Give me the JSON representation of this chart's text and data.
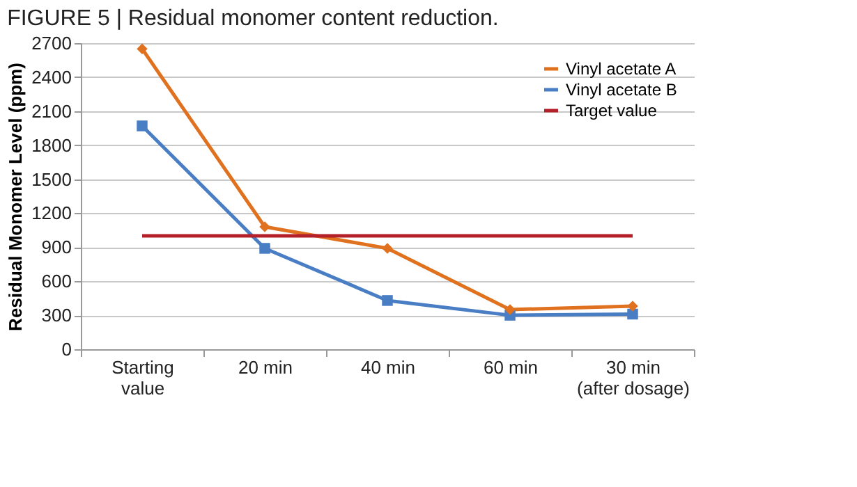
{
  "chart_data": {
    "type": "line",
    "title": "FIGURE 5 | Residual monomer content reduction.",
    "ylabel": "Residual Monomer Level (ppm)",
    "categories": [
      "Starting value",
      "20 min",
      "40 min",
      "60 min",
      "30 min (after dosage)"
    ],
    "series": [
      {
        "name": "Vinyl acetate A",
        "color": "#e0711f",
        "marker": "diamond",
        "values": [
          2650,
          1080,
          890,
          350,
          380
        ]
      },
      {
        "name": "Vinyl acetate B",
        "color": "#4a7ec4",
        "marker": "square",
        "values": [
          1970,
          890,
          430,
          300,
          310
        ]
      },
      {
        "name": "Target value",
        "color": "#b3202a",
        "marker": "none",
        "values": [
          1000,
          1000,
          1000,
          1000,
          1000
        ]
      }
    ],
    "ylim": [
      0,
      2700
    ],
    "yticks": [
      0,
      300,
      600,
      900,
      1200,
      1500,
      1800,
      2100,
      2400,
      2700
    ],
    "grid": "y",
    "legend": "top right",
    "line_style": "solid"
  }
}
